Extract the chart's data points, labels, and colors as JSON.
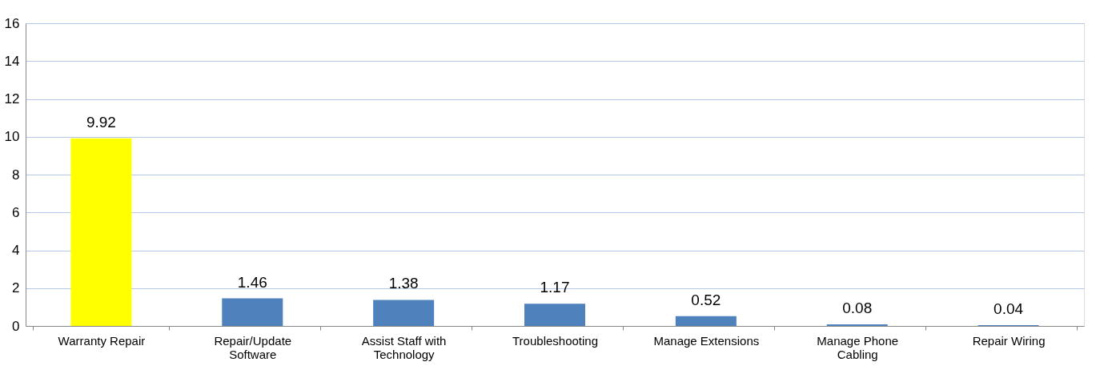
{
  "chart_data": {
    "type": "bar",
    "categories": [
      "Warranty Repair",
      "Repair/Update Software",
      "Assist Staff with Technology",
      "Troubleshooting",
      "Manage Extensions",
      "Manage Phone Cabling",
      "Repair Wiring"
    ],
    "values": [
      9.92,
      1.46,
      1.38,
      1.17,
      0.52,
      0.08,
      0.04
    ],
    "colors": [
      "#ffff00",
      "#4f81bd",
      "#4f81bd",
      "#4f81bd",
      "#4f81bd",
      "#4f81bd",
      "#4f81bd"
    ],
    "ylim": [
      0,
      16
    ],
    "yticks": [
      0,
      2,
      4,
      6,
      8,
      10,
      12,
      14,
      16
    ],
    "grid": "y",
    "data_labels": true
  }
}
